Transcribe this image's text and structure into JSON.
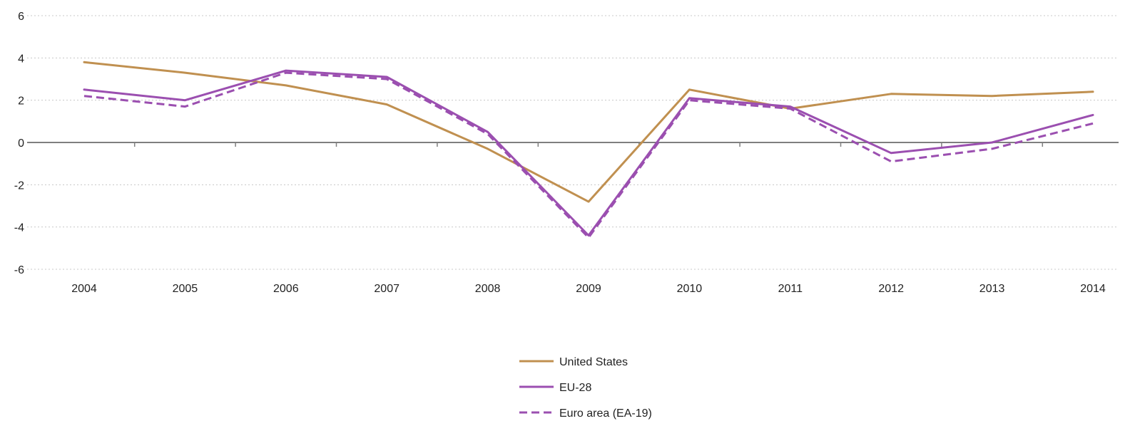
{
  "chart_data": {
    "type": "line",
    "title": "",
    "xlabel": "",
    "ylabel": "",
    "x": [
      "2004",
      "2005",
      "2006",
      "2007",
      "2008",
      "2009",
      "2010",
      "2011",
      "2012",
      "2013",
      "2014"
    ],
    "ylim": [
      -6,
      6
    ],
    "yticks": [
      "-6",
      "-4",
      "-2",
      "0",
      "2",
      "4",
      "6"
    ],
    "grid": true,
    "legend_position": "bottom-center",
    "series": [
      {
        "name": "United States",
        "color": "#c09050",
        "dash": "solid",
        "values": [
          3.8,
          3.3,
          2.7,
          1.8,
          -0.3,
          -2.8,
          2.5,
          1.6,
          2.3,
          2.2,
          2.4
        ]
      },
      {
        "name": "EU-28",
        "color": "#9b4fb0",
        "dash": "solid",
        "values": [
          2.5,
          2.0,
          3.4,
          3.1,
          0.5,
          -4.4,
          2.1,
          1.7,
          -0.5,
          0.0,
          1.3
        ]
      },
      {
        "name": "Euro area (EA-19)",
        "color": "#9b4fb0",
        "dash": "dashed",
        "values": [
          2.2,
          1.7,
          3.3,
          3.0,
          0.4,
          -4.5,
          2.0,
          1.6,
          -0.9,
          -0.3,
          0.9
        ]
      }
    ]
  }
}
